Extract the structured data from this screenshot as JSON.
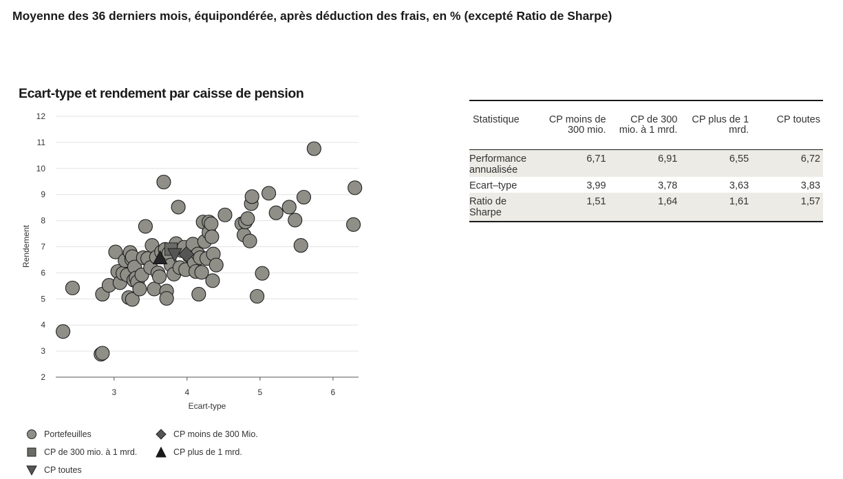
{
  "page": {
    "heading": "Moyenne des 36 derniers mois, équipondérée, après déduction des frais, en % (excepté Ratio de Sharpe)"
  },
  "chart_data": {
    "type": "scatter",
    "title": "Ecart-type et rendement par caisse de pension",
    "xlabel": "Ecart-type",
    "ylabel": "Rendement",
    "xlim": [
      2.2,
      6.35
    ],
    "ylim": [
      2,
      12
    ],
    "xticks": [
      3,
      4,
      5,
      6
    ],
    "yticks": [
      2,
      3,
      4,
      5,
      6,
      7,
      8,
      9,
      10,
      11,
      12
    ],
    "grid": "horizontal",
    "legend_position": "bottom",
    "colors": {
      "portfolio": "#8f8f88",
      "marker_dark": "#262626",
      "marker_mid": "#555555",
      "grid": "#e2e2e2"
    },
    "series": [
      {
        "name": "Portefeuilles",
        "marker": "circle",
        "points": [
          [
            2.3,
            3.75
          ],
          [
            2.43,
            5.42
          ],
          [
            2.82,
            2.88
          ],
          [
            2.84,
            2.92
          ],
          [
            2.84,
            5.18
          ],
          [
            2.93,
            5.52
          ],
          [
            3.02,
            6.8
          ],
          [
            3.05,
            6.05
          ],
          [
            3.08,
            5.62
          ],
          [
            3.12,
            5.98
          ],
          [
            3.15,
            6.47
          ],
          [
            3.18,
            5.92
          ],
          [
            3.2,
            5.05
          ],
          [
            3.22,
            6.78
          ],
          [
            3.24,
            6.52
          ],
          [
            3.25,
            4.98
          ],
          [
            3.25,
            6.62
          ],
          [
            3.27,
            5.72
          ],
          [
            3.28,
            6.22
          ],
          [
            3.3,
            5.8
          ],
          [
            3.32,
            5.65
          ],
          [
            3.35,
            5.38
          ],
          [
            3.38,
            5.92
          ],
          [
            3.4,
            6.58
          ],
          [
            3.43,
            7.78
          ],
          [
            3.46,
            6.55
          ],
          [
            3.5,
            6.2
          ],
          [
            3.52,
            7.05
          ],
          [
            3.55,
            5.38
          ],
          [
            3.58,
            6.6
          ],
          [
            3.6,
            6.0
          ],
          [
            3.62,
            5.85
          ],
          [
            3.65,
            6.8
          ],
          [
            3.68,
            9.48
          ],
          [
            3.7,
            6.9
          ],
          [
            3.72,
            5.3
          ],
          [
            3.72,
            5.02
          ],
          [
            3.75,
            6.75
          ],
          [
            3.78,
            6.3
          ],
          [
            3.82,
            5.95
          ],
          [
            3.85,
            7.12
          ],
          [
            3.88,
            8.52
          ],
          [
            3.9,
            6.2
          ],
          [
            3.93,
            6.85
          ],
          [
            3.96,
            6.98
          ],
          [
            3.98,
            6.12
          ],
          [
            4.03,
            6.65
          ],
          [
            4.08,
            7.1
          ],
          [
            4.1,
            6.4
          ],
          [
            4.12,
            6.05
          ],
          [
            4.15,
            6.72
          ],
          [
            4.16,
            5.18
          ],
          [
            4.18,
            6.58
          ],
          [
            4.2,
            6.02
          ],
          [
            4.22,
            7.95
          ],
          [
            4.24,
            7.2
          ],
          [
            4.27,
            6.55
          ],
          [
            4.3,
            7.95
          ],
          [
            4.3,
            7.55
          ],
          [
            4.33,
            7.88
          ],
          [
            4.34,
            7.38
          ],
          [
            4.35,
            5.7
          ],
          [
            4.36,
            6.72
          ],
          [
            4.4,
            6.3
          ],
          [
            4.52,
            8.22
          ],
          [
            4.75,
            7.88
          ],
          [
            4.78,
            7.45
          ],
          [
            4.8,
            7.95
          ],
          [
            4.83,
            8.08
          ],
          [
            4.86,
            7.22
          ],
          [
            4.88,
            8.65
          ],
          [
            4.89,
            8.92
          ],
          [
            4.96,
            5.1
          ],
          [
            5.03,
            5.98
          ],
          [
            5.12,
            9.05
          ],
          [
            5.22,
            8.3
          ],
          [
            5.4,
            8.52
          ],
          [
            5.48,
            8.02
          ],
          [
            5.56,
            7.05
          ],
          [
            5.6,
            8.9
          ],
          [
            5.74,
            10.76
          ],
          [
            6.28,
            7.85
          ],
          [
            6.3,
            9.26
          ]
        ]
      },
      {
        "name": "CP moins de 300 Mio.",
        "marker": "diamond",
        "points": [
          [
            3.99,
            6.71
          ]
        ]
      },
      {
        "name": "CP de 300 mio. à 1 mrd.",
        "marker": "square",
        "points": [
          [
            3.78,
            6.91
          ]
        ]
      },
      {
        "name": "CP plus de 1 mrd.",
        "marker": "triangle-up",
        "points": [
          [
            3.63,
            6.55
          ]
        ]
      },
      {
        "name": "CP toutes",
        "marker": "triangle-down",
        "points": [
          [
            3.83,
            6.72
          ]
        ]
      }
    ]
  },
  "legend": {
    "portfolios": "Portefeuilles",
    "lt300": "CP moins de 300 Mio.",
    "mid": "CP de 300 mio. à 1 mrd.",
    "gt1": "CP plus de 1 mrd.",
    "all": "CP toutes"
  },
  "table": {
    "headers": [
      "Statistique",
      "CP moins de 300 mio.",
      "CP de 300 mio. à 1 mrd.",
      "CP plus de 1 mrd.",
      "CP toutes"
    ],
    "rows": [
      {
        "label": "Performance annualisée",
        "values": [
          "6,71",
          "6,91",
          "6,55",
          "6,72"
        ]
      },
      {
        "label": "Ecart–type",
        "values": [
          "3,99",
          "3,78",
          "3,63",
          "3,83"
        ]
      },
      {
        "label": "Ratio de Sharpe",
        "values": [
          "1,51",
          "1,64",
          "1,61",
          "1,57"
        ]
      }
    ]
  }
}
